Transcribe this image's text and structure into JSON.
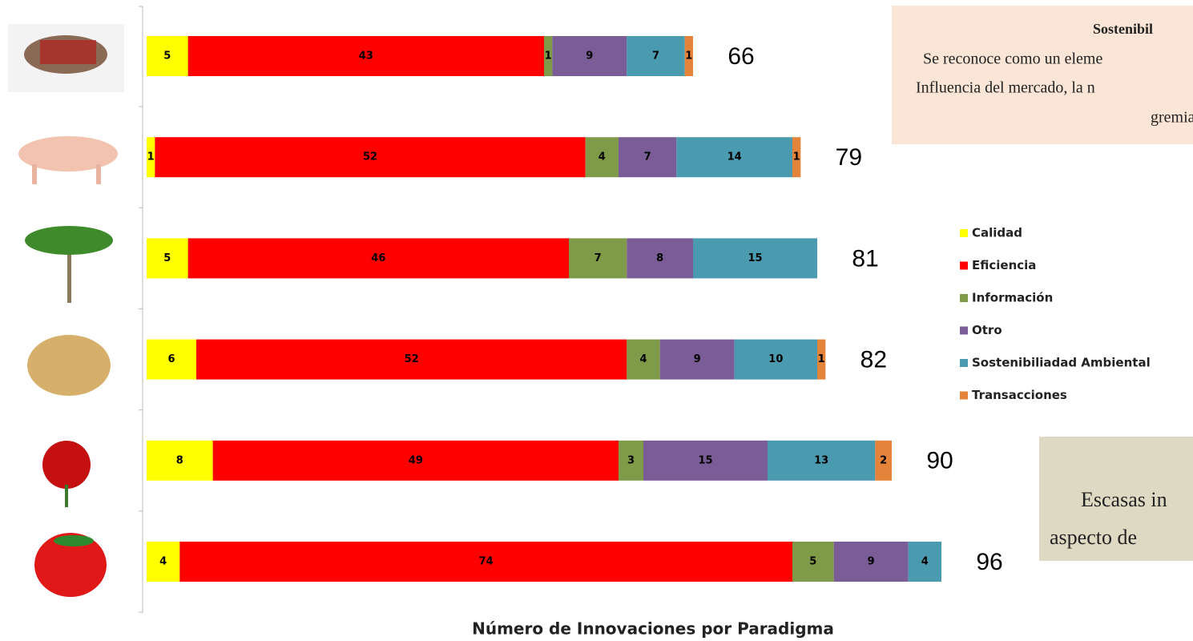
{
  "chart_data": {
    "type": "stacked-bar-horizontal",
    "x_label": "Número de Innovaciones por Paradigma",
    "categories": [
      null,
      null,
      null,
      null,
      null,
      null
    ],
    "series": [
      {
        "name": "Calidad",
        "color": "#ffff00",
        "values": [
          5,
          1,
          5,
          6,
          8,
          4
        ]
      },
      {
        "name": "Eficiencia",
        "color": "#ff0000",
        "values": [
          43,
          52,
          46,
          52,
          49,
          74
        ]
      },
      {
        "name": "Información",
        "color": "#7f9a48",
        "values": [
          1,
          4,
          7,
          4,
          3,
          5
        ]
      },
      {
        "name": "Otro",
        "color": "#7a5c96",
        "values": [
          9,
          7,
          8,
          9,
          15,
          9
        ]
      },
      {
        "name": "Sostenibiliadad Ambiental",
        "color": "#4a9bb0",
        "values": [
          7,
          14,
          15,
          10,
          13,
          4
        ]
      },
      {
        "name": "Transacciones",
        "color": "#e4843a",
        "values": [
          1,
          1,
          null,
          1,
          2,
          null
        ]
      }
    ],
    "totals": [
      66,
      79,
      81,
      82,
      90,
      96
    ],
    "legend": "right"
  },
  "text_boxes": [
    {
      "lines": [
        "Sostenibil",
        "Se reconoce como un eleme",
        "Influencia del mercado, la n",
        "gremia"
      ]
    },
    {
      "lines": [
        "Escasas in",
        "aspecto de"
      ]
    }
  ]
}
